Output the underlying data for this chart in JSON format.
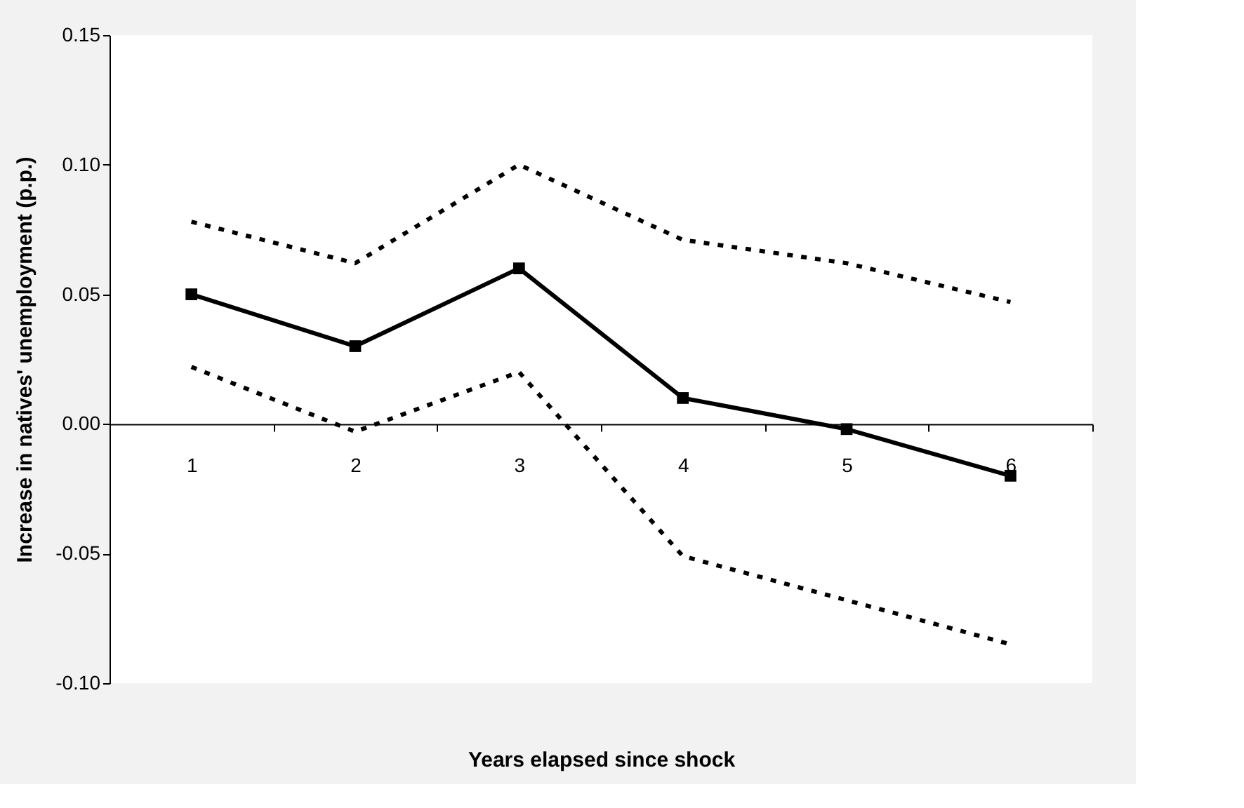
{
  "chart_data": {
    "type": "line",
    "xlabel": "Years elapsed since shock",
    "ylabel": "Increase in natives' unemployment (p.p.)",
    "categories": [
      "1",
      "2",
      "3",
      "4",
      "5",
      "6"
    ],
    "series": [
      {
        "color": "#000000",
        "values": [
          0.05,
          0.03,
          0.06,
          0.01,
          -0.002,
          -0.02
        ],
        "marker": "square",
        "line_style": "solid"
      },
      {
        "color": "#000000",
        "values": [
          0.078,
          0.062,
          0.1,
          0.071,
          0.062,
          0.047
        ],
        "marker": "none",
        "line_style": "dashed"
      },
      {
        "color": "#000000",
        "values": [
          0.022,
          -0.003,
          0.02,
          -0.051,
          -0.068,
          -0.085
        ],
        "marker": "none",
        "line_style": "dashed"
      }
    ],
    "ylim": [
      -0.1,
      0.15
    ],
    "yticks": [
      {
        "value": -0.1,
        "label": "-0.10"
      },
      {
        "value": -0.05,
        "label": "-0.05"
      },
      {
        "value": 0,
        "label": "0.00"
      },
      {
        "value": 0.05,
        "label": "0.05"
      },
      {
        "value": 0.1,
        "label": "0.10"
      },
      {
        "value": 0.15,
        "label": "0.15"
      }
    ],
    "grid": false
  }
}
